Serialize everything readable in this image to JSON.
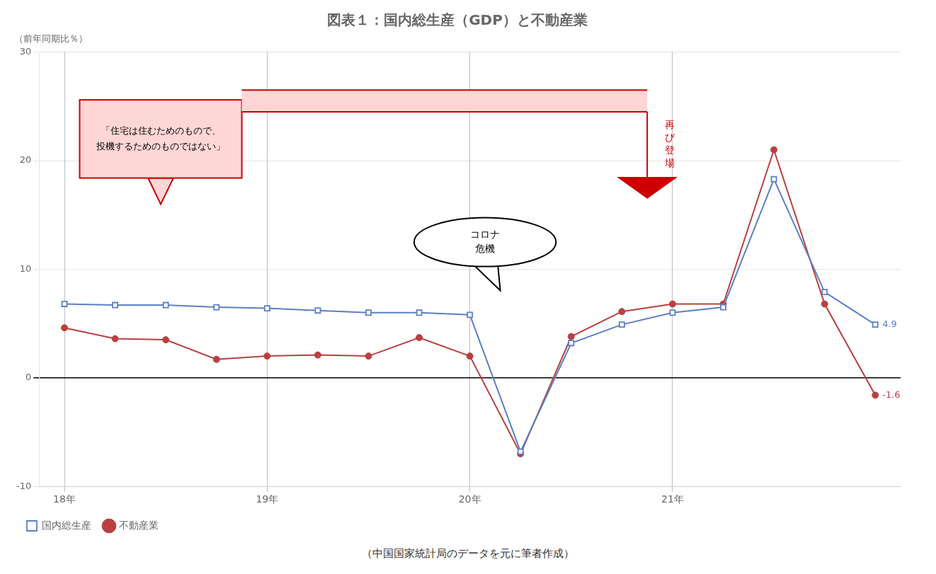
{
  "chart_data": {
    "type": "line",
    "title": "図表１：国内総生産（GDP）と不動産業",
    "subtitle": "（前年同期比％）",
    "source": "（中国国家統計局のデータを元に筆者作成）",
    "categories": [
      "18年",
      null,
      null,
      null,
      "19年",
      null,
      null,
      null,
      "20年",
      null,
      null,
      null,
      "21年",
      null,
      null,
      null,
      null
    ],
    "series": [
      {
        "name": "国内総生産",
        "color": "#5b7fc4",
        "marker": "square",
        "values": [
          6.8,
          6.7,
          6.7,
          6.5,
          6.4,
          6.2,
          6.0,
          6.0,
          5.8,
          -6.8,
          3.2,
          4.9,
          6.0,
          6.5,
          18.3,
          7.9,
          4.9
        ]
      },
      {
        "name": "不動産業",
        "color": "#b84040",
        "marker": "circle",
        "values": [
          4.6,
          3.6,
          3.5,
          1.7,
          2.0,
          2.1,
          2.0,
          3.7,
          2.0,
          -7.0,
          3.8,
          6.1,
          6.8,
          6.8,
          21.0,
          6.8,
          -1.6
        ]
      }
    ],
    "ylim": [
      -10,
      30
    ],
    "yticks": [
      -10,
      0,
      10,
      20,
      30
    ],
    "grid": true,
    "legend": "lower left",
    "annotations": [
      {
        "text": "4.9",
        "series": "国内総生産"
      },
      {
        "text": "-1.6",
        "series": "不動産業"
      },
      {
        "text": "「住宅は住むためのもので、\n投機するためのものではない」"
      },
      {
        "text": "再\nび\n登\n場"
      },
      {
        "text": "コロナ\n危機"
      }
    ]
  }
}
